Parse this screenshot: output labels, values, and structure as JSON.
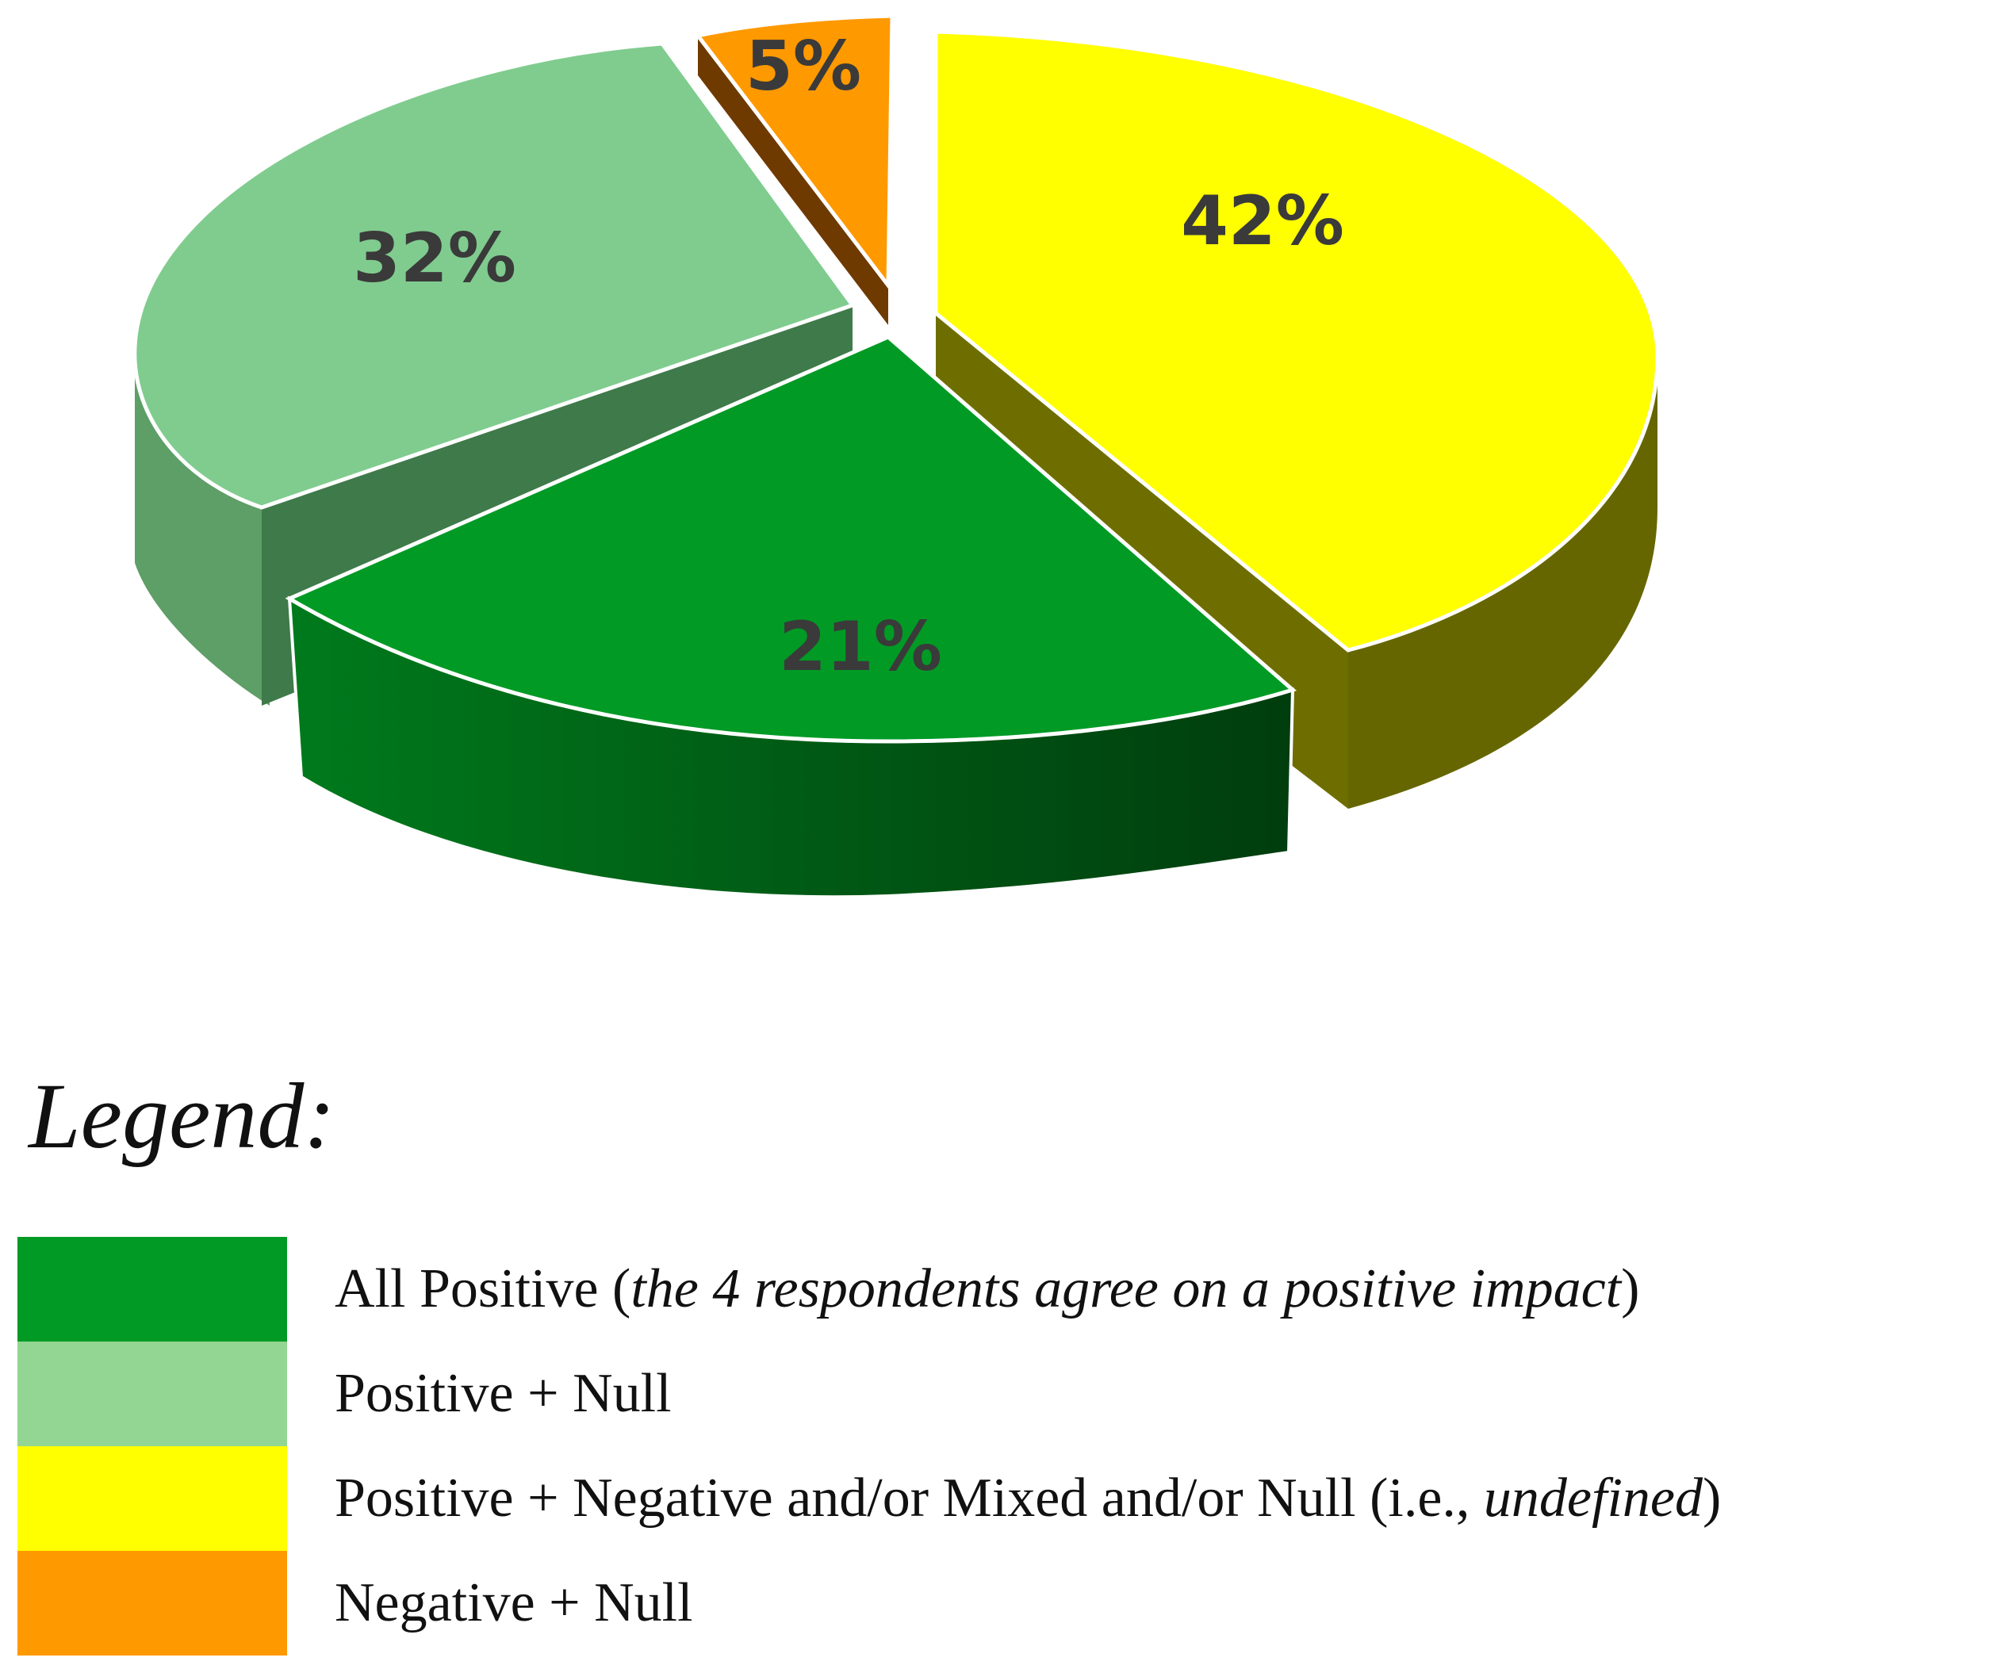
{
  "chart_data": {
    "type": "pie",
    "labels": [
      "All Positive",
      "Positive + Null",
      "Negative + Null",
      "Positive + Negative and/or Mixed and/or Null"
    ],
    "values": [
      21,
      32,
      5,
      42
    ],
    "value_labels": [
      "21%",
      "32%",
      "5%",
      "42%"
    ],
    "colors": [
      "#009a25",
      "#7fcb8a",
      "#ff9900",
      "#ffff00"
    ],
    "side_colors": [
      "#005216",
      "#4d8a56",
      "#6e3a00",
      "#6e6e00"
    ],
    "style": "3d-exploded",
    "legend_placement": "bottom"
  },
  "legend": {
    "title": "Legend:",
    "items": [
      {
        "color": "#009a25",
        "text": "All Positive (",
        "italic": "the 4 respondents agree on a positive impact",
        "suffix": ")"
      },
      {
        "color": "#93d593",
        "text": "Positive + Null",
        "italic": "",
        "suffix": ""
      },
      {
        "color": "#ffff00",
        "text": "Positive + Negative and/or Mixed and/or Null (i.e., ",
        "italic": "undefined",
        "suffix": ")"
      },
      {
        "color": "#ff9900",
        "text": "Negative + Null",
        "italic": "",
        "suffix": ""
      }
    ]
  }
}
